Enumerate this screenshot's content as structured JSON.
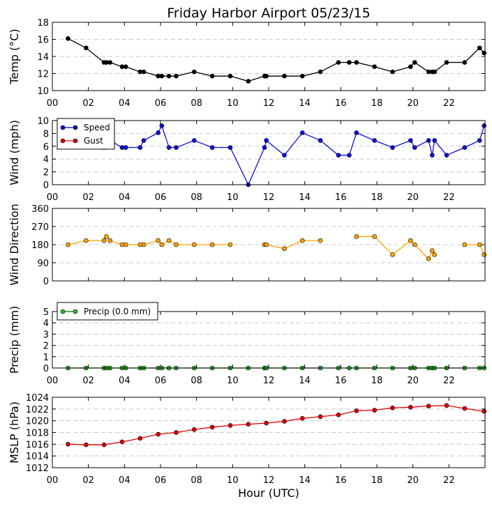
{
  "chart_data": {
    "type": "line",
    "title": "Friday Harbor Airport 05/23/15",
    "xlabel": "Hour (UTC)",
    "x_ticks": [
      "00",
      "02",
      "04",
      "06",
      "08",
      "10",
      "12",
      "14",
      "16",
      "18",
      "20",
      "22"
    ],
    "xlim": [
      0,
      24
    ],
    "panels": [
      {
        "id": "temp",
        "ylabel": "Temp (°C)",
        "ylim": [
          10,
          18
        ],
        "yticks": [
          "10",
          "12",
          "14",
          "16",
          "18"
        ],
        "show_x_ticklabels": true,
        "series": [
          {
            "name": "Temp",
            "color": "#000000",
            "marker": "#000000",
            "x": [
              0.87,
              1.87,
              2.87,
              3.0,
              3.2,
              3.87,
              4.07,
              4.87,
              5.07,
              5.87,
              6.07,
              6.47,
              6.87,
              7.87,
              8.87,
              9.87,
              10.87,
              11.77,
              11.87,
              12.87,
              13.87,
              14.87,
              15.87,
              16.47,
              16.87,
              17.87,
              18.87,
              19.87,
              20.1,
              20.87,
              21.07,
              21.2,
              21.87,
              22.87,
              23.7,
              23.95
            ],
            "y": [
              16.1,
              15.0,
              13.3,
              13.3,
              13.3,
              12.8,
              12.8,
              12.2,
              12.2,
              11.7,
              11.7,
              11.7,
              11.7,
              12.2,
              11.7,
              11.7,
              11.1,
              11.7,
              11.7,
              11.7,
              11.7,
              12.2,
              13.3,
              13.3,
              13.3,
              12.8,
              12.2,
              12.8,
              13.3,
              12.2,
              12.2,
              12.2,
              13.3,
              13.3,
              15.0,
              14.4
            ]
          }
        ]
      },
      {
        "id": "wind",
        "ylabel": "Wind (mph)",
        "ylim": [
          0,
          10
        ],
        "yticks": [
          "0",
          "2",
          "4",
          "6",
          "8",
          "10"
        ],
        "show_x_ticklabels": true,
        "legend": [
          "Speed",
          "Gust"
        ],
        "legend_colors": [
          "#0000cc",
          "#dd0000"
        ],
        "series": [
          {
            "name": "Speed",
            "color": "#1010dd",
            "marker": "#1010dd",
            "x": [
              2.87,
              3.2,
              3.87,
              4.07,
              4.87,
              5.07,
              5.87,
              6.07,
              6.47,
              6.87,
              7.87,
              8.87,
              9.87,
              10.87,
              11.77,
              11.87,
              12.87,
              13.87,
              14.87,
              15.87,
              16.47,
              16.87,
              17.87,
              18.87,
              19.87,
              20.1,
              20.87,
              21.07,
              21.2,
              21.87,
              22.87,
              23.7,
              23.95
            ],
            "y": [
              5.8,
              6.9,
              5.8,
              5.8,
              5.8,
              6.9,
              8.1,
              9.2,
              5.8,
              5.8,
              6.9,
              5.8,
              5.8,
              0,
              5.8,
              6.9,
              4.6,
              8.1,
              6.9,
              4.6,
              4.6,
              8.1,
              6.9,
              5.8,
              6.9,
              5.8,
              6.9,
              4.6,
              6.9,
              4.6,
              5.8,
              6.9,
              9.2
            ]
          },
          {
            "name": "Gust",
            "color": "#dd0000",
            "marker": "#dd0000",
            "x": [],
            "y": []
          }
        ]
      },
      {
        "id": "dir",
        "ylabel": "Wind Direction",
        "ylim": [
          0,
          360
        ],
        "yticks": [
          "0",
          "90",
          "180",
          "270",
          "360"
        ],
        "show_x_ticklabels": false,
        "series": [
          {
            "name": "Wind Direction",
            "color": "#ffa500",
            "marker": "#ffa500",
            "segments": [
              {
                "x": [
                  0.87,
                  1.87,
                  2.87,
                  3.0,
                  3.2,
                  3.87,
                  4.07,
                  4.87,
                  5.07,
                  5.87,
                  6.07,
                  6.47,
                  6.87,
                  7.87,
                  8.87,
                  9.87
                ],
                "y": [
                  180,
                  200,
                  200,
                  220,
                  200,
                  180,
                  180,
                  180,
                  180,
                  200,
                  180,
                  200,
                  180,
                  180,
                  180,
                  180
                ]
              },
              {
                "x": [
                  11.77,
                  11.87,
                  12.87,
                  13.87,
                  14.87
                ],
                "y": [
                  180,
                  180,
                  160,
                  200,
                  200
                ]
              },
              {
                "x": [
                  16.87,
                  17.87,
                  18.87,
                  19.87,
                  20.1,
                  20.87,
                  21.07,
                  21.2
                ],
                "y": [
                  220,
                  220,
                  130,
                  200,
                  180,
                  110,
                  150,
                  130
                ]
              },
              {
                "x": [
                  22.87,
                  23.7,
                  23.95
                ],
                "y": [
                  180,
                  180,
                  130
                ]
              }
            ]
          }
        ]
      },
      {
        "id": "precip",
        "ylabel": "Precip (mm)",
        "ylim": [
          0,
          5
        ],
        "yticks": [
          "0",
          "1",
          "2",
          "3",
          "4",
          "5"
        ],
        "show_x_ticklabels": true,
        "legend": [
          "Precip (0.0 mm)"
        ],
        "legend_colors": [
          "#006400"
        ],
        "series": [
          {
            "name": "Precip (0.0 mm)",
            "color": "#006400",
            "marker": "#2db82d",
            "x": [
              0.87,
              1.87,
              2.87,
              3.0,
              3.2,
              3.87,
              4.07,
              4.87,
              5.07,
              5.87,
              6.07,
              6.47,
              6.87,
              7.87,
              8.87,
              9.87,
              10.87,
              11.77,
              11.87,
              12.87,
              13.87,
              14.87,
              15.87,
              16.47,
              16.87,
              17.87,
              18.87,
              19.87,
              20.1,
              20.87,
              21.07,
              21.2,
              21.87,
              22.87,
              23.7,
              23.95
            ],
            "y": [
              0,
              0,
              0,
              0,
              0,
              0,
              0,
              0,
              0,
              0,
              0,
              0,
              0,
              0,
              0,
              0,
              0,
              0,
              0,
              0,
              0,
              0,
              0,
              0,
              0,
              0,
              0,
              0,
              0,
              0,
              0,
              0,
              0,
              0,
              0,
              0
            ]
          }
        ]
      },
      {
        "id": "mslp",
        "ylabel": "MSLP (hPa)",
        "ylim": [
          1012,
          1024
        ],
        "yticks": [
          "1012",
          "1014",
          "1016",
          "1018",
          "1020",
          "1022",
          "1024"
        ],
        "show_x_ticklabels": true,
        "series": [
          {
            "name": "MSLP",
            "color": "#dd0000",
            "marker": "#dd0000",
            "x": [
              0.87,
              1.87,
              2.87,
              3.87,
              4.87,
              5.87,
              6.87,
              7.87,
              8.87,
              9.87,
              10.87,
              11.87,
              12.87,
              13.87,
              14.87,
              15.87,
              16.87,
              17.87,
              18.87,
              19.87,
              20.87,
              21.87,
              22.87,
              23.95
            ],
            "y": [
              1016.0,
              1015.9,
              1015.9,
              1016.4,
              1017.0,
              1017.7,
              1018.0,
              1018.5,
              1018.9,
              1019.2,
              1019.4,
              1019.6,
              1019.9,
              1020.4,
              1020.7,
              1021.0,
              1021.7,
              1021.8,
              1022.2,
              1022.3,
              1022.5,
              1022.6,
              1022.1,
              1021.6
            ]
          }
        ]
      }
    ]
  }
}
